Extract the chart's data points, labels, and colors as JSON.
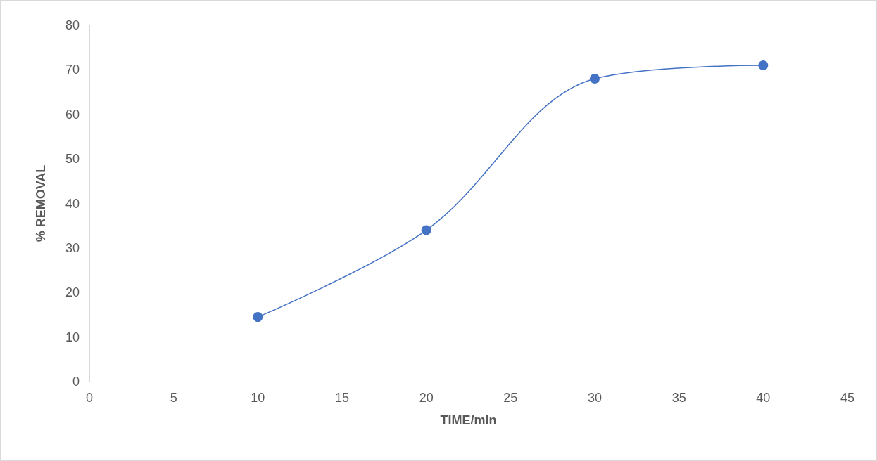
{
  "chart_data": {
    "type": "line",
    "xlabel": "TIME/min",
    "ylabel": "% REMOVAL",
    "x": [
      10,
      20,
      30,
      40
    ],
    "series": [
      {
        "color": "#4472c4",
        "values": [
          14.5,
          34,
          68,
          71
        ]
      }
    ],
    "xlim": [
      0,
      45
    ],
    "xticks": [
      0,
      5,
      10,
      15,
      20,
      25,
      30,
      35,
      40,
      45
    ],
    "ylim": [
      0,
      80
    ],
    "yticks": [
      0,
      10,
      20,
      30,
      40,
      50,
      60,
      70,
      80
    ],
    "grid": false,
    "marker": "circle",
    "line_style": "solid"
  }
}
